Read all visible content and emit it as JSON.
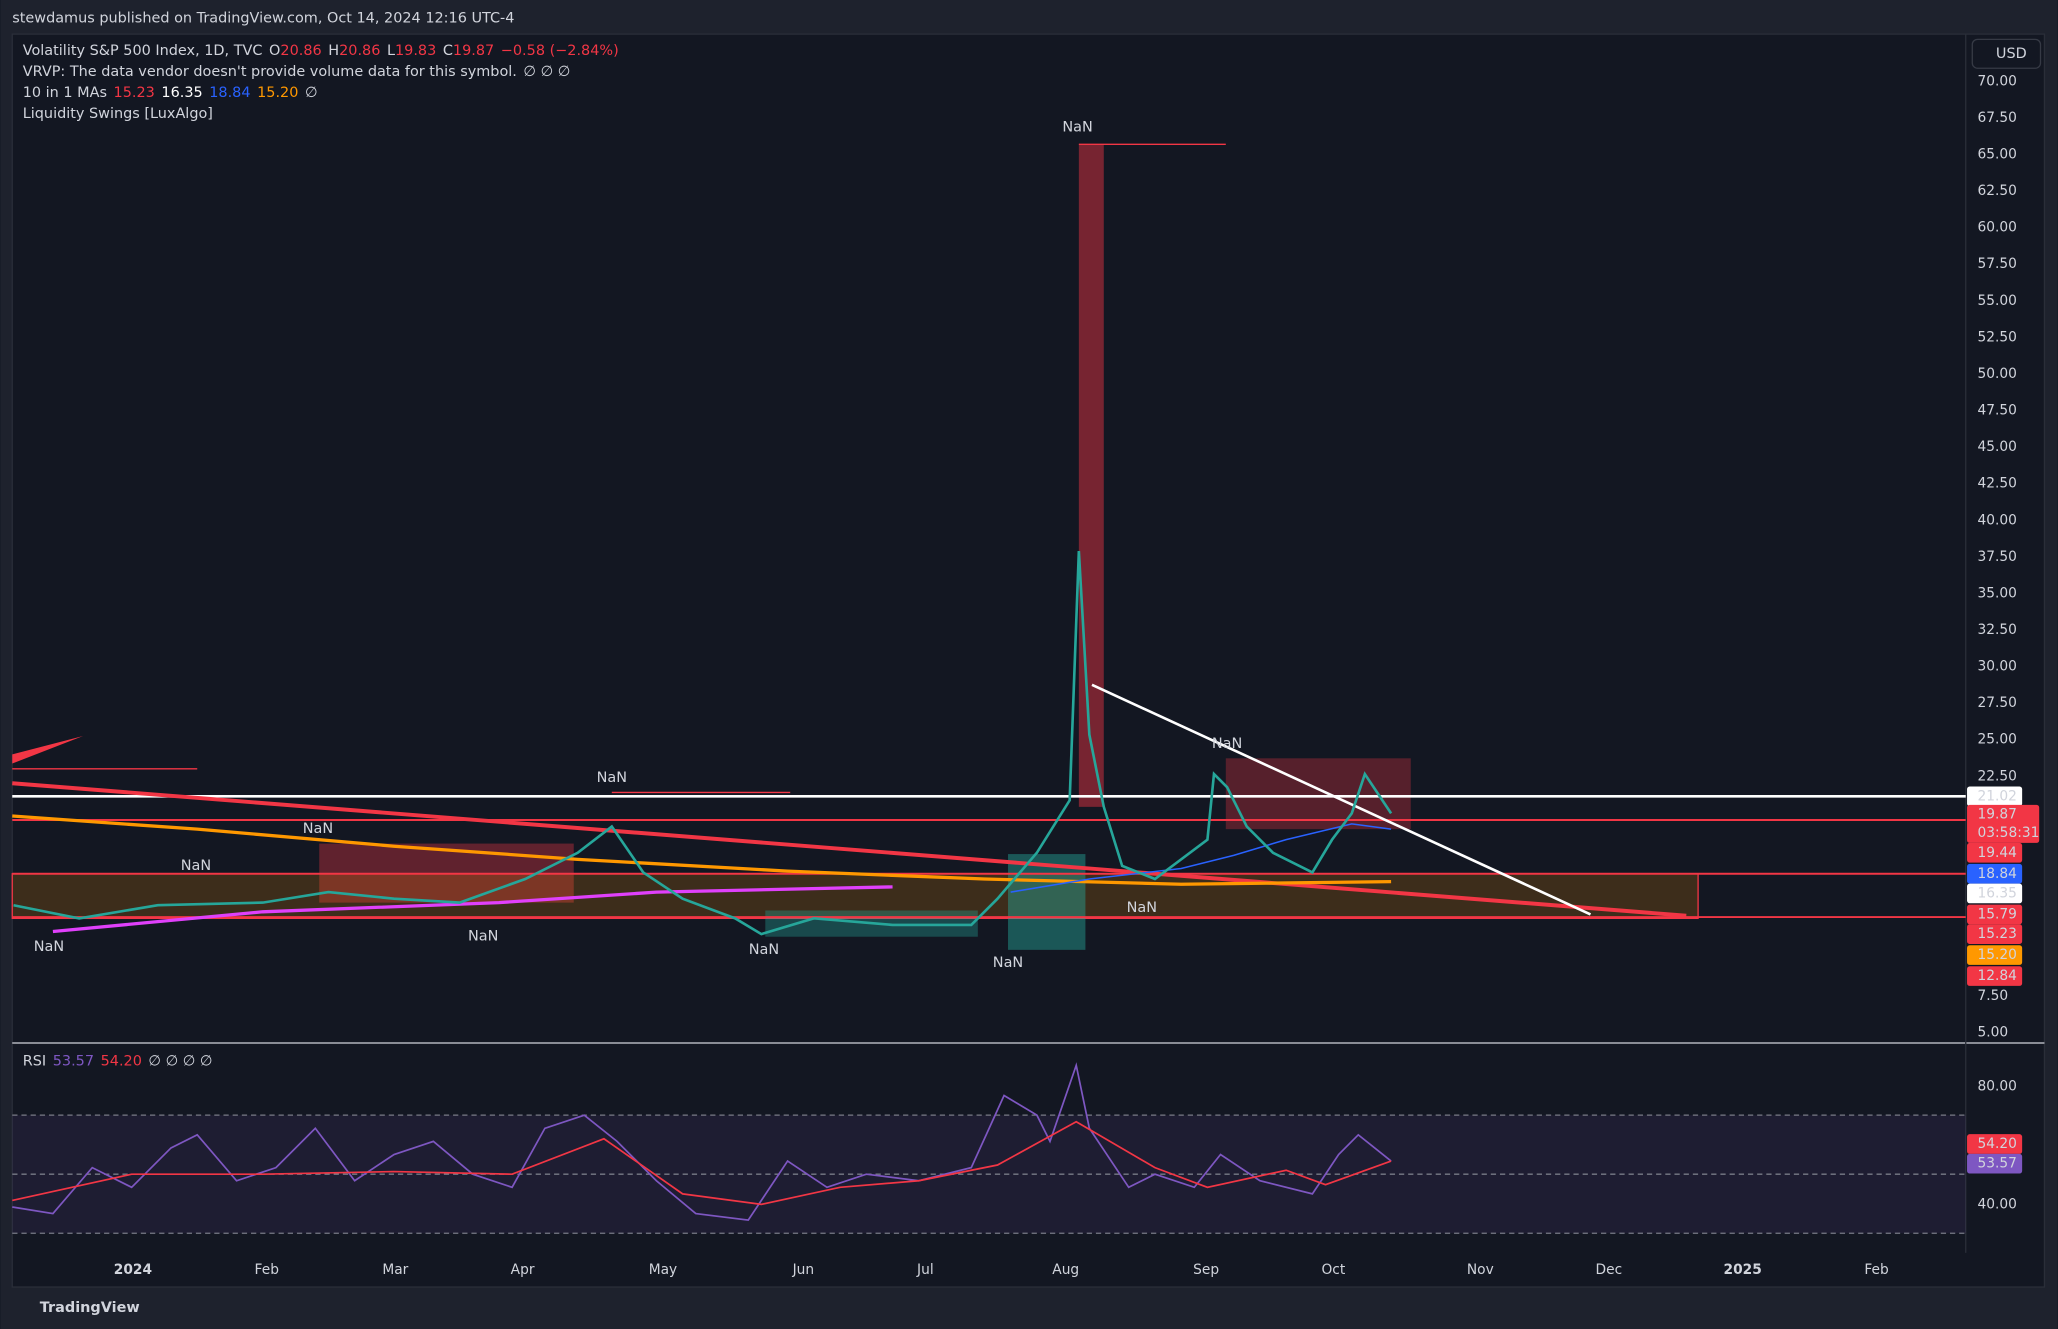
{
  "header": {
    "publisher": "stewdamus published on TradingView.com, Oct 14, 2024 12:16 UTC-4"
  },
  "legend": {
    "symbol": "Volatility S&P 500 Index, 1D, TVC",
    "ohlc": [
      {
        "label": "O",
        "value": "20.86"
      },
      {
        "label": "H",
        "value": "20.86"
      },
      {
        "label": "L",
        "value": "19.83"
      },
      {
        "label": "C",
        "value": "19.87"
      }
    ],
    "change": "−0.58 (−2.84%)",
    "vrvp": "VRVP: The data vendor doesn't provide volume data for this symbol.",
    "vrvp_flags": "∅ ∅ ∅",
    "mas_name": "10 in 1 MAs",
    "mas_values": [
      "15.23",
      "16.35",
      "18.84",
      "15.20"
    ],
    "mas_flag": "∅",
    "liquidity": "Liquidity Swings [LuxAlgo]"
  },
  "currency": "USD",
  "price_axis": [
    "70.00",
    "67.50",
    "65.00",
    "62.50",
    "60.00",
    "57.50",
    "55.00",
    "52.50",
    "50.00",
    "47.50",
    "45.00",
    "42.50",
    "40.00",
    "37.50",
    "35.00",
    "32.50",
    "30.00",
    "27.50",
    "25.00",
    "22.50",
    "7.50",
    "5.00"
  ],
  "price_badges": [
    "21.02",
    "19.87",
    "19.44",
    "18.84",
    "16.35",
    "15.79",
    "15.23",
    "15.20",
    "12.84"
  ],
  "countdown": "03:58:31",
  "rsi": {
    "name": "RSI",
    "values": [
      "53.57",
      "54.20"
    ],
    "flags": "∅ ∅ ∅ ∅",
    "axis": [
      "80.00",
      "40.00"
    ],
    "badges": [
      "54.20",
      "53.57"
    ]
  },
  "time_axis": [
    "2024",
    "Feb",
    "Mar",
    "Apr",
    "May",
    "Jun",
    "Jul",
    "Aug",
    "Sep",
    "Oct",
    "Nov",
    "Dec",
    "2025",
    "Feb"
  ],
  "nan_labels": [
    "NaN",
    "NaN",
    "NaN",
    "NaN",
    "NaN",
    "NaN",
    "NaN",
    "NaN",
    "NaN",
    "NaN"
  ],
  "footer": {
    "brand": "TradingView"
  }
}
